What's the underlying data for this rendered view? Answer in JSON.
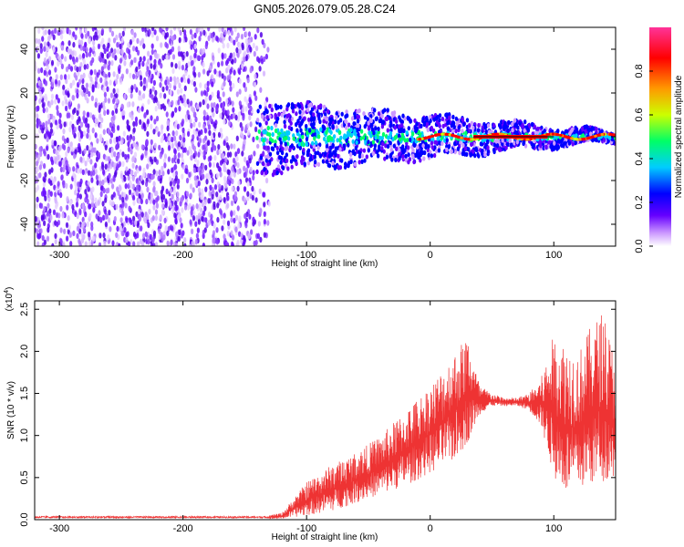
{
  "figure": {
    "title": "GN05.2026.079.05.28.C24"
  },
  "chart_data": [
    {
      "type": "heatmap",
      "name": "spectrogram",
      "xlabel": "Height of straight line (km)",
      "ylabel": "Frequency (Hz)",
      "xlim": [
        -320,
        150
      ],
      "ylim": [
        -50,
        50
      ],
      "xticks": [
        -300,
        -200,
        -100,
        0,
        100
      ],
      "yticks": [
        -40,
        -20,
        0,
        20,
        40
      ],
      "noise_region": [
        -320,
        -145
      ],
      "transition_region": [
        -145,
        -130
      ],
      "signal_region": [
        -130,
        150
      ],
      "signal_center_frequency": 0,
      "colorbar": {
        "label": "Normalized spectral amplitude",
        "range": [
          0,
          1
        ],
        "ticks": [
          0.0,
          0.2,
          0.4,
          0.6,
          0.8
        ],
        "tick_labels": [
          "0.0",
          "0.2",
          "0.4",
          "0.6",
          "0.8"
        ],
        "colors": [
          "#ffffff",
          "#cc99ff",
          "#6600ff",
          "#0000ff",
          "#00ccff",
          "#00ff66",
          "#ccff00",
          "#ff9900",
          "#ff0000",
          "#ff3399"
        ]
      }
    },
    {
      "type": "line",
      "name": "snr",
      "xlabel": "Height of straight line (km)",
      "ylabel": "SNR (10 * v/v)",
      "scale_label": "(x10^4)",
      "scale_base": "(x10",
      "scale_exp": "4",
      "xlim": [
        -320,
        150
      ],
      "ylim": [
        0,
        2.6
      ],
      "xticks": [
        -300,
        -200,
        -100,
        0,
        100
      ],
      "yticks": [
        0.0,
        0.5,
        1.0,
        1.5,
        2.0,
        2.5
      ],
      "ytick_labels": [
        "0.0",
        "0.5",
        "1.0",
        "1.5",
        "2.0",
        "2.5"
      ],
      "color": "#ee3333",
      "envelope_x": [
        -320,
        -140,
        -120,
        -100,
        -80,
        -60,
        -40,
        -20,
        0,
        20,
        30,
        40,
        50,
        60,
        70,
        80,
        90,
        100,
        110,
        120,
        130,
        140,
        150
      ],
      "envelope_peak": [
        0.03,
        0.03,
        0.08,
        0.45,
        0.65,
        0.8,
        1.0,
        1.3,
        1.6,
        2.0,
        2.2,
        1.6,
        1.5,
        1.45,
        1.45,
        1.5,
        1.7,
        2.2,
        2.1,
        2.0,
        2.3,
        2.5,
        1.9
      ],
      "envelope_base": [
        0.0,
        0.0,
        0.01,
        0.05,
        0.1,
        0.2,
        0.3,
        0.4,
        0.55,
        0.7,
        0.9,
        1.25,
        1.35,
        1.35,
        1.35,
        1.3,
        1.1,
        0.5,
        0.3,
        0.35,
        0.4,
        0.45,
        0.5
      ]
    }
  ]
}
